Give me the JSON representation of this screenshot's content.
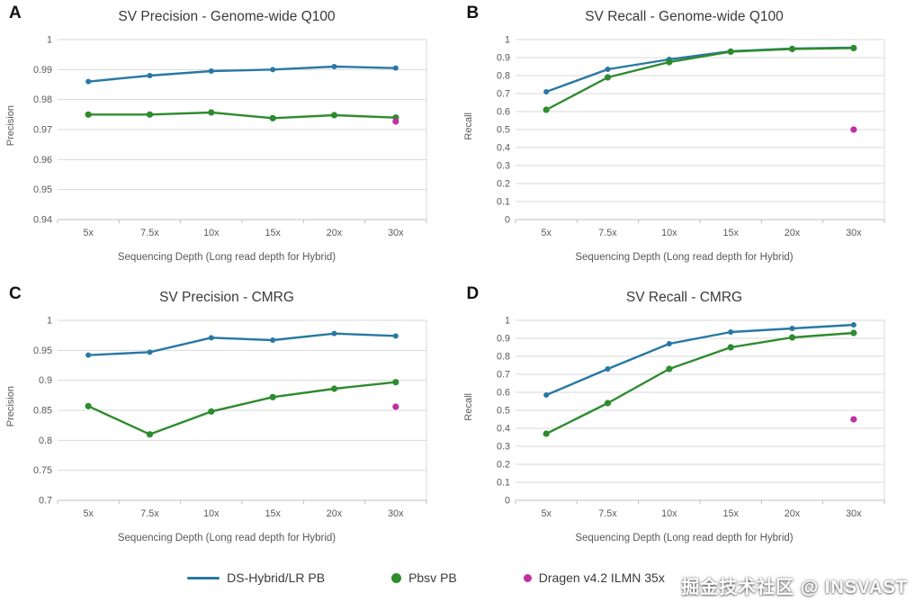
{
  "colors": {
    "blue": "#2878a4",
    "green": "#2e8b2e",
    "magenta": "#c22fa5",
    "grid": "#d9d9d9",
    "axis": "#bfbfbf",
    "tick_text": "#595959"
  },
  "chart_data": [
    {
      "panel": "A",
      "type": "line",
      "title": "SV Precision - Genome-wide Q100",
      "xlabel": "Sequencing Depth (Long read depth for Hybrid)",
      "ylabel": "Precision",
      "categories": [
        "5x",
        "7.5x",
        "10x",
        "15x",
        "20x",
        "30x"
      ],
      "ylim": [
        0.94,
        1.0
      ],
      "yticks": [
        0.94,
        0.95,
        0.96,
        0.97,
        0.98,
        0.99,
        1
      ],
      "ytick_labels": [
        "0.94",
        "0.95",
        "0.96",
        "0.97",
        "0.98",
        "0.99",
        "1"
      ],
      "series": [
        {
          "name": "DS-Hybrid/LR PB",
          "color": "#2878a4",
          "values": [
            0.986,
            0.988,
            0.9895,
            0.99,
            0.991,
            0.9905
          ]
        },
        {
          "name": "Pbsv PB",
          "color": "#2e8b2e",
          "values": [
            0.975,
            0.975,
            0.9757,
            0.9738,
            0.9748,
            0.974
          ]
        }
      ],
      "point": {
        "name": "Dragen v4.2 ILMN 35x",
        "color": "#c22fa5",
        "x": "30x",
        "y": 0.9727
      }
    },
    {
      "panel": "B",
      "type": "line",
      "title": "SV Recall - Genome-wide Q100",
      "xlabel": "Sequencing Depth (Long read depth for Hybrid)",
      "ylabel": "Recall",
      "categories": [
        "5x",
        "7.5x",
        "10x",
        "15x",
        "20x",
        "30x"
      ],
      "ylim": [
        0,
        1
      ],
      "yticks": [
        0,
        0.1,
        0.2,
        0.3,
        0.4,
        0.5,
        0.6,
        0.7,
        0.8,
        0.9,
        1
      ],
      "ytick_labels": [
        "0",
        "0.1",
        "0.2",
        "0.3",
        "0.4",
        "0.5",
        "0.6",
        "0.7",
        "0.8",
        "0.9",
        "1"
      ],
      "series": [
        {
          "name": "DS-Hybrid/LR PB",
          "color": "#2878a4",
          "values": [
            0.71,
            0.835,
            0.89,
            0.935,
            0.95,
            0.955
          ]
        },
        {
          "name": "Pbsv PB",
          "color": "#2e8b2e",
          "values": [
            0.61,
            0.79,
            0.875,
            0.933,
            0.948,
            0.953
          ]
        }
      ],
      "point": {
        "name": "Dragen v4.2 ILMN 35x",
        "color": "#c22fa5",
        "x": "30x",
        "y": 0.5
      }
    },
    {
      "panel": "C",
      "type": "line",
      "title": "SV Precision - CMRG",
      "xlabel": "Sequencing Depth (Long read depth for Hybrid)",
      "ylabel": "Precision",
      "categories": [
        "5x",
        "7.5x",
        "10x",
        "15x",
        "20x",
        "30x"
      ],
      "ylim": [
        0.7,
        1.0
      ],
      "yticks": [
        0.7,
        0.75,
        0.8,
        0.85,
        0.9,
        0.95,
        1
      ],
      "ytick_labels": [
        "0.7",
        "0.75",
        "0.8",
        "0.85",
        "0.9",
        "0.95",
        "1"
      ],
      "series": [
        {
          "name": "DS-Hybrid/LR PB",
          "color": "#2878a4",
          "values": [
            0.942,
            0.947,
            0.971,
            0.967,
            0.978,
            0.974
          ]
        },
        {
          "name": "Pbsv PB",
          "color": "#2e8b2e",
          "values": [
            0.857,
            0.81,
            0.848,
            0.872,
            0.886,
            0.897
          ]
        }
      ],
      "point": {
        "name": "Dragen v4.2 ILMN 35x",
        "color": "#c22fa5",
        "x": "30x",
        "y": 0.856
      }
    },
    {
      "panel": "D",
      "type": "line",
      "title": "SV Recall - CMRG",
      "xlabel": "Sequencing Depth (Long read depth for Hybrid)",
      "ylabel": "Recall",
      "categories": [
        "5x",
        "7.5x",
        "10x",
        "15x",
        "20x",
        "30x"
      ],
      "ylim": [
        0,
        1
      ],
      "yticks": [
        0,
        0.1,
        0.2,
        0.3,
        0.4,
        0.5,
        0.6,
        0.7,
        0.8,
        0.9,
        1
      ],
      "ytick_labels": [
        "0",
        "0.1",
        "0.2",
        "0.3",
        "0.4",
        "0.5",
        "0.6",
        "0.7",
        "0.8",
        "0.9",
        "1"
      ],
      "series": [
        {
          "name": "DS-Hybrid/LR PB",
          "color": "#2878a4",
          "values": [
            0.585,
            0.73,
            0.87,
            0.935,
            0.955,
            0.975
          ]
        },
        {
          "name": "Pbsv PB",
          "color": "#2e8b2e",
          "values": [
            0.37,
            0.54,
            0.73,
            0.85,
            0.905,
            0.93
          ]
        }
      ],
      "point": {
        "name": "Dragen v4.2 ILMN 35x",
        "color": "#c22fa5",
        "x": "30x",
        "y": 0.45
      }
    }
  ],
  "legend": {
    "items": [
      {
        "label": "DS-Hybrid/LR PB",
        "color": "#2878a4",
        "marker": "line"
      },
      {
        "label": "Pbsv PB",
        "color": "#2e8b2e",
        "marker": "dot"
      },
      {
        "label": "Dragen v4.2 ILMN 35x",
        "color": "#c22fa5",
        "marker": "dot-small"
      }
    ]
  },
  "watermark": "掘金技术社区 @ INSVAST"
}
